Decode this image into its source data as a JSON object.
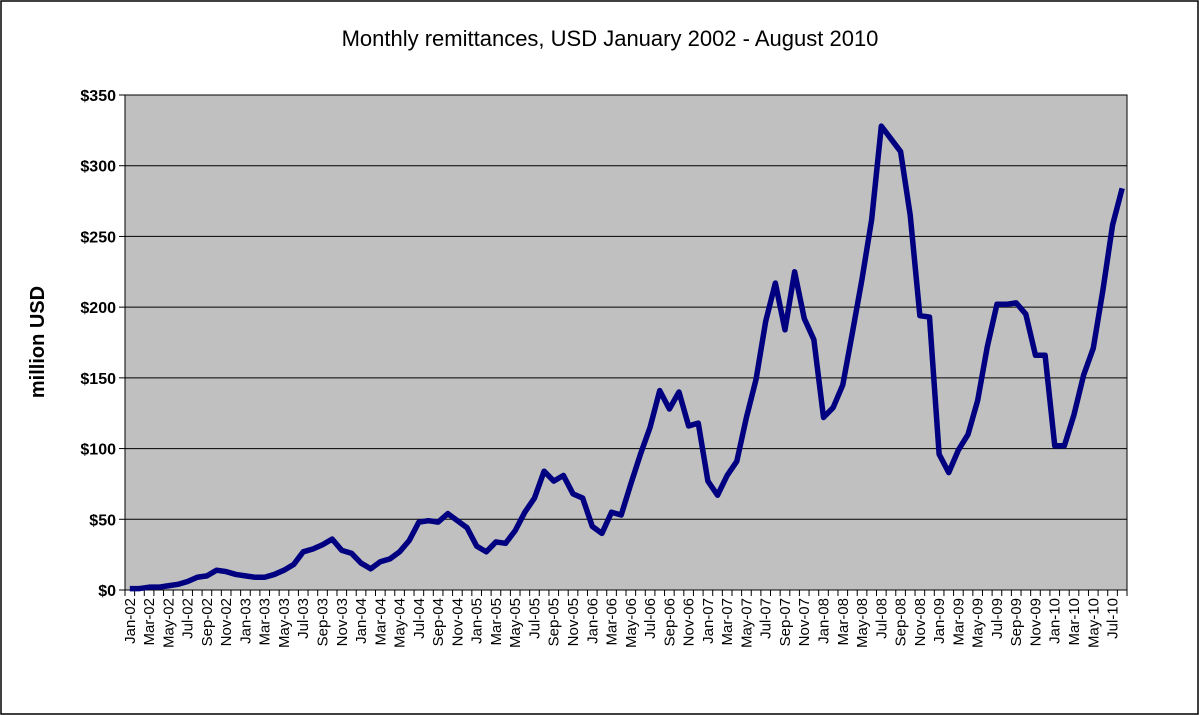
{
  "chart_data": {
    "type": "line",
    "title": "Monthly remittances, USD January 2002 - August 2010",
    "y_label": "million USD",
    "categories": [
      "Jan-02",
      null,
      "Mar-02",
      null,
      "May-02",
      null,
      "Jul-02",
      null,
      "Sep-02",
      null,
      "Nov-02",
      null,
      "Jan-03",
      null,
      "Mar-03",
      null,
      "May-03",
      null,
      "Jul-03",
      null,
      "Sep-03",
      null,
      "Nov-03",
      null,
      "Jan-04",
      null,
      "Mar-04",
      null,
      "May-04",
      null,
      "Jul-04",
      null,
      "Sep-04",
      null,
      "Nov-04",
      null,
      "Jan-05",
      null,
      "Mar-05",
      null,
      "May-05",
      null,
      "Jul-05",
      null,
      "Sep-05",
      null,
      "Nov-05",
      null,
      "Jan-06",
      null,
      "Mar-06",
      null,
      "May-06",
      null,
      "Jul-06",
      null,
      "Sep-06",
      null,
      "Nov-06",
      null,
      "Jan-07",
      null,
      "Mar-07",
      null,
      "May-07",
      null,
      "Jul-07",
      null,
      "Sep-07",
      null,
      "Nov-07",
      null,
      "Jan-08",
      null,
      "Mar-08",
      null,
      "May-08",
      null,
      "Jul-08",
      null,
      "Sep-08",
      null,
      "Nov-08",
      null,
      "Jan-09",
      null,
      "Mar-09",
      null,
      "May-09",
      null,
      "Jul-09",
      null,
      "Sep-09",
      null,
      "Nov-09",
      null,
      "Jan-10",
      null,
      "Mar-10",
      null,
      "May-10",
      null,
      "Jul-10",
      null
    ],
    "series": [
      {
        "color": "#000080",
        "values": [
          1,
          1,
          2,
          2,
          3,
          4,
          6,
          9,
          10,
          14,
          13,
          11,
          10,
          9,
          9,
          11,
          14,
          18,
          27,
          29,
          32,
          36,
          28,
          26,
          19,
          15,
          20,
          22,
          27,
          35,
          48,
          49,
          48,
          54,
          49,
          44,
          31,
          27,
          34,
          33,
          42,
          55,
          65,
          84,
          77,
          81,
          68,
          65,
          45,
          40,
          55,
          53,
          75,
          96,
          115,
          141,
          128,
          140,
          116,
          118,
          77,
          67,
          81,
          91,
          122,
          149,
          190,
          217,
          184,
          225,
          192,
          177,
          122,
          129,
          145,
          182,
          220,
          262,
          328,
          319,
          310,
          265,
          194,
          193,
          96,
          83,
          99,
          110,
          134,
          172,
          202,
          202,
          203,
          195,
          166,
          166,
          102,
          102,
          124,
          152,
          171,
          212,
          258,
          284
        ]
      }
    ],
    "ylim": [
      0,
      350
    ],
    "yticks": [
      {
        "value": 0,
        "label": "$0"
      },
      {
        "value": 50,
        "label": "$50"
      },
      {
        "value": 100,
        "label": "$100"
      },
      {
        "value": 150,
        "label": "$150"
      },
      {
        "value": 200,
        "label": "$200"
      },
      {
        "value": 250,
        "label": "$250"
      },
      {
        "value": 300,
        "label": "$300"
      },
      {
        "value": 350,
        "label": "$350"
      }
    ],
    "grid": true,
    "plot_background": "#c0c0c0"
  }
}
